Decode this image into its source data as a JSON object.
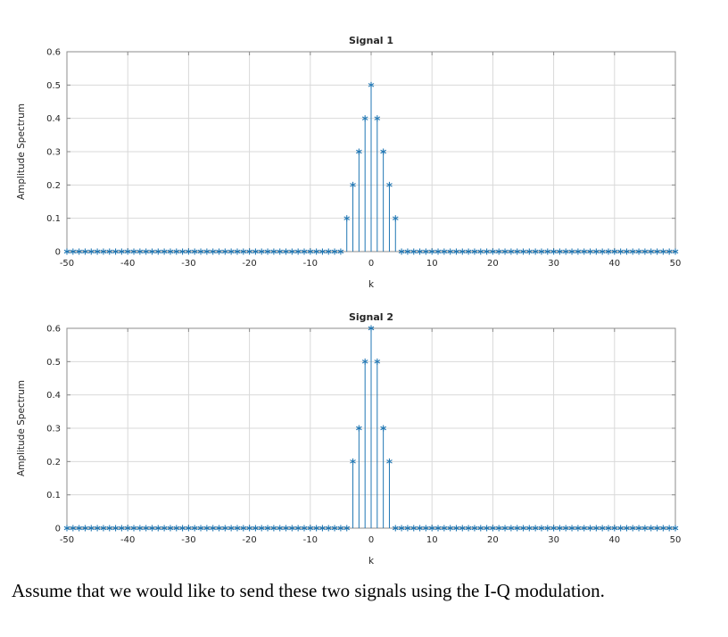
{
  "page": {
    "background": "#ffffff",
    "caption": "Assume that we would like to send these two signals using the I-Q modulation."
  },
  "chart_style": {
    "line_color": "#2077b4",
    "grid_color": "#d9d9d9",
    "box_color": "#8c8c8c",
    "text_color": "#262626",
    "marker": "asterisk"
  },
  "chart_data": [
    {
      "type": "stem",
      "title": "Signal 1",
      "xlabel": "k",
      "ylabel": "Amplitude Spectrum",
      "xlim": [
        -50,
        50
      ],
      "ylim": [
        0,
        0.6
      ],
      "xticks": [
        -50,
        -40,
        -30,
        -20,
        -10,
        0,
        10,
        20,
        30,
        40,
        50
      ],
      "yticks": [
        0,
        0.1,
        0.2,
        0.3,
        0.4,
        0.5,
        0.6
      ],
      "grid": true,
      "legend": "none",
      "k_start": -50,
      "k_end": 50,
      "nonzero_points": [
        {
          "k": -4,
          "v": 0.1
        },
        {
          "k": -3,
          "v": 0.2
        },
        {
          "k": -2,
          "v": 0.3
        },
        {
          "k": -1,
          "v": 0.4
        },
        {
          "k": 0,
          "v": 0.5
        },
        {
          "k": 1,
          "v": 0.4
        },
        {
          "k": 2,
          "v": 0.3
        },
        {
          "k": 3,
          "v": 0.2
        },
        {
          "k": 4,
          "v": 0.1
        }
      ],
      "all_other_values": 0
    },
    {
      "type": "stem",
      "title": "Signal 2",
      "xlabel": "k",
      "ylabel": "Amplitude Spectrum",
      "xlim": [
        -50,
        50
      ],
      "ylim": [
        0,
        0.6
      ],
      "xticks": [
        -50,
        -40,
        -30,
        -20,
        -10,
        0,
        10,
        20,
        30,
        40,
        50
      ],
      "yticks": [
        0,
        0.1,
        0.2,
        0.3,
        0.4,
        0.5,
        0.6
      ],
      "grid": true,
      "legend": "none",
      "k_start": -50,
      "k_end": 50,
      "nonzero_points": [
        {
          "k": -3,
          "v": 0.2
        },
        {
          "k": -2,
          "v": 0.3
        },
        {
          "k": -1,
          "v": 0.5
        },
        {
          "k": 0,
          "v": 0.6
        },
        {
          "k": 1,
          "v": 0.5
        },
        {
          "k": 2,
          "v": 0.3
        },
        {
          "k": 3,
          "v": 0.2
        }
      ],
      "all_other_values": 0
    }
  ]
}
